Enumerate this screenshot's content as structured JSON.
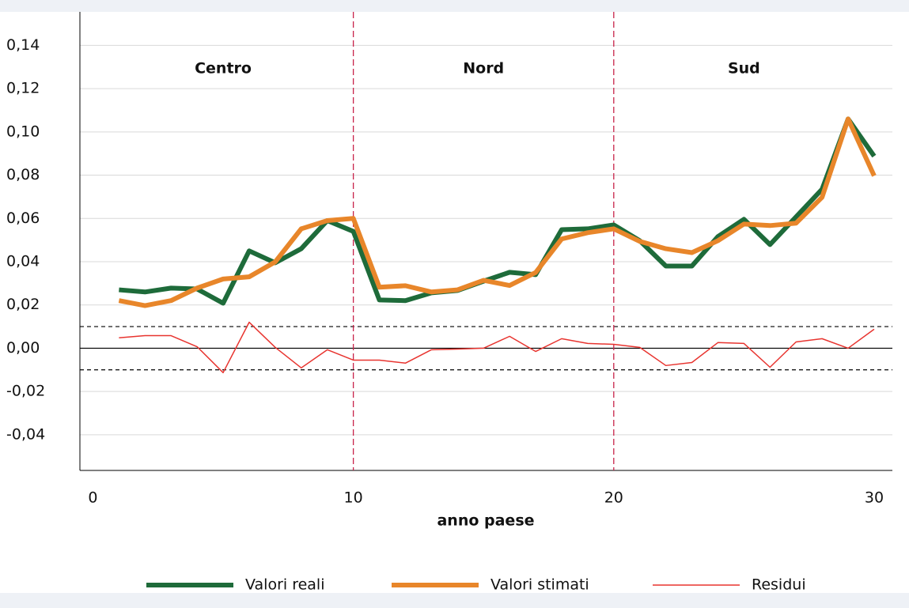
{
  "chart_data": {
    "type": "line",
    "x_label": "anno paese",
    "x": [
      1,
      2,
      3,
      4,
      5,
      6,
      7,
      8,
      9,
      10,
      11,
      12,
      13,
      14,
      15,
      16,
      17,
      18,
      19,
      20,
      21,
      22,
      23,
      24,
      25,
      26,
      27,
      28,
      29,
      30
    ],
    "series": [
      {
        "name": "Valori reali",
        "color": "#1e6b3a",
        "width": 6,
        "values": [
          0.027,
          0.026,
          0.0278,
          0.0274,
          0.0208,
          0.045,
          0.0395,
          0.046,
          0.059,
          0.054,
          0.0223,
          0.022,
          0.0256,
          0.0267,
          0.031,
          0.0351,
          0.034,
          0.0548,
          0.0552,
          0.057,
          0.0497,
          0.038,
          0.038,
          0.0516,
          0.0596,
          0.0479,
          0.0607,
          0.0735,
          0.106,
          0.0888
        ]
      },
      {
        "name": "Valori stimati",
        "color": "#e8862a",
        "width": 6,
        "values": [
          0.022,
          0.0197,
          0.022,
          0.0278,
          0.032,
          0.033,
          0.0399,
          0.0552,
          0.059,
          0.06,
          0.0282,
          0.0289,
          0.026,
          0.027,
          0.0314,
          0.029,
          0.035,
          0.0505,
          0.0534,
          0.0552,
          0.0494,
          0.046,
          0.0442,
          0.0497,
          0.0574,
          0.0567,
          0.0578,
          0.0698,
          0.106,
          0.0797
        ]
      },
      {
        "name": "Residui",
        "color": "#e8342f",
        "width": 1.5,
        "values": [
          0.0048,
          0.0058,
          0.0058,
          0.0007,
          -0.0113,
          0.012,
          0.0004,
          -0.0091,
          -0.0007,
          -0.0055,
          -0.0055,
          -0.0069,
          -0.0007,
          -0.0004,
          0,
          0.0055,
          -0.0015,
          0.0044,
          0.0022,
          0.0018,
          0.0004,
          -0.008,
          -0.0066,
          0.0026,
          0.0022,
          -0.0088,
          0.0029,
          0.0044,
          0,
          0.0088
        ]
      }
    ],
    "annotations": [
      "Centro",
      "Nord",
      "Sud"
    ],
    "hlines_dashed": [
      -0.01,
      0.01
    ],
    "hline_solid": 0,
    "vlines": [
      10,
      20
    ],
    "vline_color": "#c8234a",
    "xlim": [
      -0.5,
      30.7
    ],
    "xticks": [
      0,
      10,
      20,
      30
    ],
    "ylim": [
      -0.0565,
      0.1555
    ],
    "yticks": [
      {
        "value": -0.04,
        "label": "-0,04"
      },
      {
        "value": -0.02,
        "label": "-0,02"
      },
      {
        "value": 0,
        "label": "0,00"
      },
      {
        "value": 0.02,
        "label": "0,02"
      },
      {
        "value": 0.04,
        "label": "0,04"
      },
      {
        "value": 0.06,
        "label": "0,06"
      },
      {
        "value": 0.08,
        "label": "0,08"
      },
      {
        "value": 0.1,
        "label": "0,10"
      },
      {
        "value": 0.12,
        "label": "0,12"
      },
      {
        "value": 0.14,
        "label": "0,14"
      }
    ],
    "grid": true
  }
}
